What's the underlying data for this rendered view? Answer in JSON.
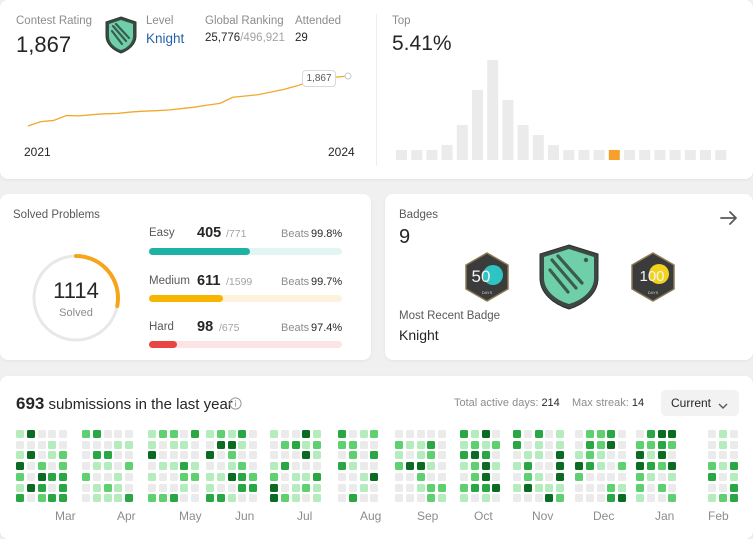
{
  "contest": {
    "rating_label": "Contest Rating",
    "rating_value": "1,867",
    "level_label": "Level",
    "level_value": "Knight",
    "ranking_label": "Global Ranking",
    "ranking_value": "25,776",
    "ranking_total": "/496,921",
    "attended_label": "Attended",
    "attended_value": "29",
    "tooltip_value": "1,867",
    "year_start": "2021",
    "year_end": "2024",
    "line_color": "#f0a92a",
    "rating_series": [
      1580,
      1605,
      1612,
      1640,
      1638,
      1645,
      1650,
      1652,
      1660,
      1665,
      1668,
      1672,
      1680,
      1688,
      1700,
      1710,
      1745,
      1752,
      1760,
      1775,
      1790,
      1810,
      1835,
      1850,
      1860,
      1867
    ]
  },
  "top": {
    "label": "Top",
    "value": "5.41%",
    "histogram": [
      2,
      2,
      2,
      3,
      7,
      14,
      20,
      12,
      7,
      5,
      3,
      2,
      2,
      2,
      2,
      2,
      2,
      2,
      2,
      2,
      2,
      2
    ],
    "highlight_index": 14,
    "bar_color": "#ebebeb",
    "highlight_color": "#f6a02b"
  },
  "solved": {
    "label": "Solved Problems",
    "total": "1114",
    "total_label": "Solved",
    "ring_fraction": 0.28,
    "ring_color": "#f6a51a",
    "difficulties": [
      {
        "name": "Easy",
        "count": "405",
        "total": "/771",
        "beats_label": "Beats",
        "beats": "99.8%",
        "fraction": 0.525,
        "color": "#1eb2a6",
        "track": "#e2f5f3"
      },
      {
        "name": "Medium",
        "count": "611",
        "total": "/1599",
        "beats_label": "Beats",
        "beats": "99.7%",
        "fraction": 0.382,
        "color": "#f7b500",
        "track": "#fdf2dc"
      },
      {
        "name": "Hard",
        "count": "98",
        "total": "/675",
        "beats_label": "Beats",
        "beats": "97.4%",
        "fraction": 0.145,
        "color": "#e84545",
        "track": "#fbe4e4"
      }
    ]
  },
  "badges": {
    "label": "Badges",
    "count": "9",
    "recent_label": "Most Recent Badge",
    "recent_value": "Knight",
    "badge_50_text": "50",
    "badge_100_text": "100",
    "badge_50_sub": "DAYS",
    "badge_100_sub": "DAYS"
  },
  "submissions": {
    "count": "693",
    "text": "submissions in the last year",
    "active_label": "Total active days:",
    "active_value": "214",
    "streak_label": "Max streak:",
    "streak_value": "14",
    "period": "Current",
    "months": [
      "Mar",
      "Apr",
      "May",
      "Jun",
      "Jul",
      "Aug",
      "Sep",
      "Oct",
      "Nov",
      "Dec",
      "Jan",
      "Feb"
    ],
    "levels_colors": [
      "#ebebeb",
      "#b5ecbe",
      "#5fd070",
      "#28a744",
      "#0b6b22"
    ]
  }
}
